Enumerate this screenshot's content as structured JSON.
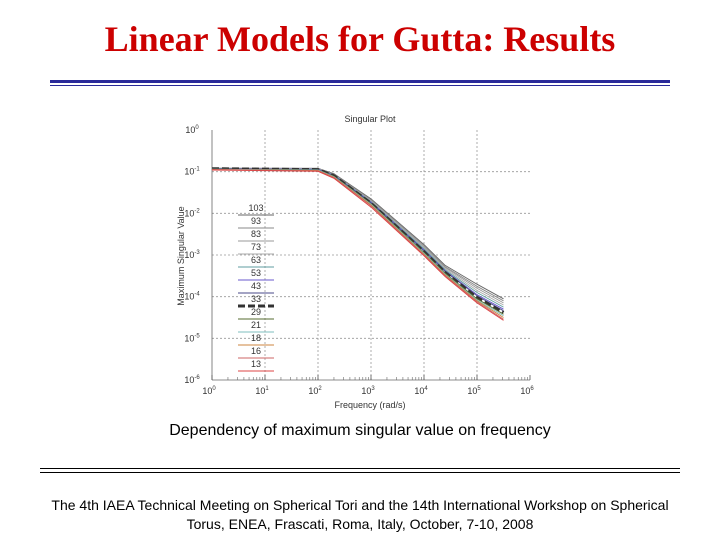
{
  "slide": {
    "title": "Linear Models for Gutta: Results",
    "caption": "Dependency of maximum singular value on frequency",
    "footer_line1": "The 4th IAEA Technical Meeting on Spherical Tori and the 14th International Workshop on Spherical",
    "footer_line2": "Torus, ENEA, Frascati, Roma, Italy, October, 7-10, 2008",
    "title_color": "#cc0000",
    "rule_color": "#2a2a99"
  },
  "chart_data": {
    "type": "line",
    "title": "Singular Plot",
    "xlabel": "Frequency (rad/s)",
    "ylabel": "Maximum Singular Value",
    "xscale": "log",
    "yscale": "log",
    "xlim_exp": [
      0,
      6
    ],
    "ylim_exp": [
      -6,
      0
    ],
    "x_ticks": [
      {
        "base": "10",
        "exp": "0"
      },
      {
        "base": "10",
        "exp": "1"
      },
      {
        "base": "10",
        "exp": "2"
      },
      {
        "base": "10",
        "exp": "3"
      },
      {
        "base": "10",
        "exp": "4"
      },
      {
        "base": "10",
        "exp": "5"
      },
      {
        "base": "10",
        "exp": "6"
      }
    ],
    "y_ticks": [
      {
        "base": "10",
        "exp": "0"
      },
      {
        "base": "10",
        "exp": "-1"
      },
      {
        "base": "10",
        "exp": "-2"
      },
      {
        "base": "10",
        "exp": "-3"
      },
      {
        "base": "10",
        "exp": "-4"
      },
      {
        "base": "10",
        "exp": "-5"
      },
      {
        "base": "10",
        "exp": "-6"
      }
    ],
    "grid": true,
    "legend_location": "left",
    "series": [
      {
        "name": "103",
        "color": "#666666",
        "dash": "solid",
        "points": [
          [
            0,
            -0.92
          ],
          [
            2,
            -0.92
          ],
          [
            2.3,
            -1.05
          ],
          [
            3,
            -1.65
          ],
          [
            4,
            -2.75
          ],
          [
            4.4,
            -3.25
          ],
          [
            5,
            -3.7
          ],
          [
            5.5,
            -4.05
          ]
        ]
      },
      {
        "name": "93",
        "color": "#888888",
        "dash": "solid",
        "points": [
          [
            0,
            -0.92
          ],
          [
            2,
            -0.92
          ],
          [
            2.3,
            -1.06
          ],
          [
            3,
            -1.67
          ],
          [
            4,
            -2.77
          ],
          [
            4.4,
            -3.28
          ],
          [
            5,
            -3.75
          ],
          [
            5.5,
            -4.1
          ]
        ]
      },
      {
        "name": "83",
        "color": "#999999",
        "dash": "solid",
        "points": [
          [
            0,
            -0.92
          ],
          [
            2,
            -0.93
          ],
          [
            2.3,
            -1.07
          ],
          [
            3,
            -1.69
          ],
          [
            4,
            -2.8
          ],
          [
            4.4,
            -3.3
          ],
          [
            5,
            -3.8
          ],
          [
            5.5,
            -4.15
          ]
        ]
      },
      {
        "name": "73",
        "color": "#aaaaaa",
        "dash": "solid",
        "points": [
          [
            0,
            -0.92
          ],
          [
            2,
            -0.93
          ],
          [
            2.3,
            -1.08
          ],
          [
            3,
            -1.7
          ],
          [
            4,
            -2.82
          ],
          [
            4.4,
            -3.33
          ],
          [
            5,
            -3.85
          ],
          [
            5.5,
            -4.2
          ]
        ]
      },
      {
        "name": "63",
        "color": "#5f9ea0",
        "dash": "solid",
        "points": [
          [
            0,
            -0.93
          ],
          [
            2,
            -0.94
          ],
          [
            2.3,
            -1.08
          ],
          [
            3,
            -1.72
          ],
          [
            4,
            -2.85
          ],
          [
            4.4,
            -3.36
          ],
          [
            5,
            -3.9
          ],
          [
            5.5,
            -4.25
          ]
        ]
      },
      {
        "name": "53",
        "color": "#6a5acd",
        "dash": "solid",
        "points": [
          [
            0,
            -0.93
          ],
          [
            2,
            -0.94
          ],
          [
            2.3,
            -1.09
          ],
          [
            3,
            -1.73
          ],
          [
            4,
            -2.88
          ],
          [
            4.4,
            -3.38
          ],
          [
            5,
            -3.95
          ],
          [
            5.5,
            -4.3
          ]
        ]
      },
      {
        "name": "43",
        "color": "#4a4a8a",
        "dash": "solid",
        "points": [
          [
            0,
            -0.93
          ],
          [
            2,
            -0.95
          ],
          [
            2.3,
            -1.1
          ],
          [
            3,
            -1.75
          ],
          [
            4,
            -2.9
          ],
          [
            4.4,
            -3.4
          ],
          [
            5,
            -3.98
          ],
          [
            5.5,
            -4.34
          ]
        ]
      },
      {
        "name": "33",
        "color": "#333333",
        "dash": "dashed",
        "points": [
          [
            0,
            -0.93
          ],
          [
            2,
            -0.95
          ],
          [
            2.3,
            -1.1
          ],
          [
            3,
            -1.76
          ],
          [
            4,
            -2.92
          ],
          [
            4.4,
            -3.42
          ],
          [
            5,
            -4.02
          ],
          [
            5.5,
            -4.38
          ]
        ]
      },
      {
        "name": "29",
        "color": "#556b2f",
        "dash": "solid",
        "points": [
          [
            0,
            -0.94
          ],
          [
            2,
            -0.96
          ],
          [
            2.3,
            -1.11
          ],
          [
            3,
            -1.77
          ],
          [
            4,
            -2.94
          ],
          [
            4.4,
            -3.44
          ],
          [
            5,
            -4.05
          ],
          [
            5.5,
            -4.42
          ]
        ]
      },
      {
        "name": "21",
        "color": "#7fbfbf",
        "dash": "solid",
        "points": [
          [
            0,
            -0.94
          ],
          [
            2,
            -0.96
          ],
          [
            2.3,
            -1.12
          ],
          [
            3,
            -1.78
          ],
          [
            4,
            -2.96
          ],
          [
            4.4,
            -3.46
          ],
          [
            5,
            -4.08
          ],
          [
            5.5,
            -4.46
          ]
        ]
      },
      {
        "name": "18",
        "color": "#cd853f",
        "dash": "solid",
        "points": [
          [
            0,
            -0.95
          ],
          [
            2,
            -0.97
          ],
          [
            2.3,
            -1.13
          ],
          [
            3,
            -1.8
          ],
          [
            4,
            -2.98
          ],
          [
            4.4,
            -3.48
          ],
          [
            5,
            -4.1
          ],
          [
            5.5,
            -4.5
          ]
        ]
      },
      {
        "name": "16",
        "color": "#cc6666",
        "dash": "solid",
        "points": [
          [
            0,
            -0.95
          ],
          [
            2,
            -0.98
          ],
          [
            2.3,
            -1.14
          ],
          [
            3,
            -1.82
          ],
          [
            4,
            -3.0
          ],
          [
            4.4,
            -3.5
          ],
          [
            5,
            -4.12
          ],
          [
            5.5,
            -4.54
          ]
        ]
      },
      {
        "name": "13",
        "color": "#dd4444",
        "dash": "solid",
        "points": [
          [
            0,
            -0.96
          ],
          [
            2,
            -0.99
          ],
          [
            2.3,
            -1.16
          ],
          [
            3,
            -1.85
          ],
          [
            4,
            -3.02
          ],
          [
            4.4,
            -3.52
          ],
          [
            5,
            -4.15
          ],
          [
            5.5,
            -4.57
          ]
        ]
      }
    ]
  }
}
